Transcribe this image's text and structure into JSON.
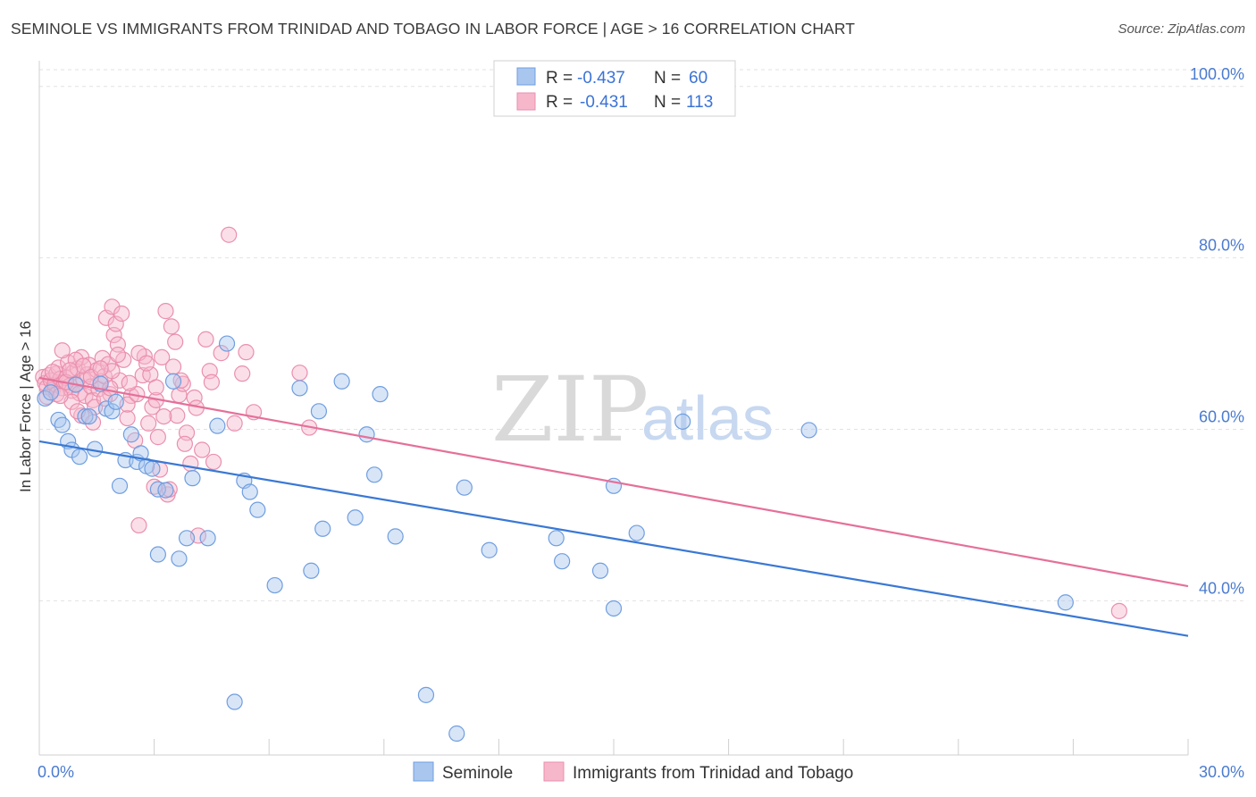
{
  "title": "SEMINOLE VS IMMIGRANTS FROM TRINIDAD AND TOBAGO IN LABOR FORCE | AGE > 16 CORRELATION CHART",
  "source": "Source: ZipAtlas.com",
  "watermark": {
    "zip": "ZIP",
    "atlas": "atlas"
  },
  "legend": {
    "r_label": "R =",
    "n_label": "N =",
    "items": [
      {
        "r": "-0.437",
        "n": "60"
      },
      {
        "r": "-0.431",
        "n": "113"
      }
    ]
  },
  "bottom_legend": [
    "Seminole",
    "Immigrants from Trinidad and Tobago"
  ],
  "colors": {
    "blue_fill": "#a9c6ee",
    "blue_stroke": "#6f9ee0",
    "blue_line": "#3a78d4",
    "pink_fill": "#f6b7cb",
    "pink_stroke": "#ea8fae",
    "pink_line": "#e5709a",
    "tick_text": "#4a7bd0"
  },
  "chart_data": {
    "type": "scatter",
    "xlabel": "",
    "ylabel": "In Labor Force | Age > 16",
    "xlim": [
      0,
      30
    ],
    "ylim": [
      22,
      103
    ],
    "x_tick_labels": [
      "0.0%",
      "30.0%"
    ],
    "y_ticks": [
      {
        "value": 100,
        "label": "100.0%"
      },
      {
        "value": 80,
        "label": "80.0%"
      },
      {
        "value": 60,
        "label": "60.0%"
      },
      {
        "value": 40,
        "label": "40.0%"
      }
    ],
    "grid": true,
    "series": [
      {
        "name": "Seminole",
        "trend": {
          "x": [
            0,
            30
          ],
          "y": [
            58.6,
            35.9
          ]
        },
        "points": [
          [
            0.15,
            63.6
          ],
          [
            0.3,
            64.3
          ],
          [
            0.5,
            61.1
          ],
          [
            0.6,
            60.5
          ],
          [
            0.75,
            58.6
          ],
          [
            0.85,
            57.6
          ],
          [
            1.05,
            56.8
          ],
          [
            1.2,
            61.5
          ],
          [
            1.45,
            57.7
          ],
          [
            1.6,
            65.3
          ],
          [
            1.75,
            62.4
          ],
          [
            1.9,
            62.1
          ],
          [
            2.0,
            63.2
          ],
          [
            2.1,
            53.4
          ],
          [
            2.25,
            56.4
          ],
          [
            2.4,
            59.4
          ],
          [
            2.55,
            56.2
          ],
          [
            2.65,
            57.2
          ],
          [
            2.8,
            55.7
          ],
          [
            2.95,
            55.4
          ],
          [
            3.1,
            53.0
          ],
          [
            3.3,
            52.9
          ],
          [
            3.5,
            65.6
          ],
          [
            3.65,
            44.9
          ],
          [
            3.85,
            47.3
          ],
          [
            4.0,
            54.3
          ],
          [
            4.4,
            47.3
          ],
          [
            4.65,
            60.4
          ],
          [
            4.9,
            70.0
          ],
          [
            5.1,
            28.2
          ],
          [
            5.35,
            54.0
          ],
          [
            5.5,
            52.7
          ],
          [
            5.7,
            50.6
          ],
          [
            6.15,
            41.8
          ],
          [
            6.8,
            64.8
          ],
          [
            7.1,
            43.5
          ],
          [
            7.3,
            62.1
          ],
          [
            7.4,
            48.4
          ],
          [
            7.9,
            65.6
          ],
          [
            8.25,
            49.7
          ],
          [
            8.55,
            59.4
          ],
          [
            8.75,
            54.7
          ],
          [
            8.9,
            64.1
          ],
          [
            9.3,
            47.5
          ],
          [
            10.1,
            29.0
          ],
          [
            10.9,
            24.5
          ],
          [
            11.1,
            53.2
          ],
          [
            11.75,
            45.9
          ],
          [
            13.5,
            47.3
          ],
          [
            13.65,
            44.6
          ],
          [
            14.65,
            43.5
          ],
          [
            15.0,
            53.4
          ],
          [
            15.0,
            39.1
          ],
          [
            15.6,
            47.9
          ],
          [
            16.8,
            60.9
          ],
          [
            20.1,
            59.9
          ],
          [
            26.8,
            39.8
          ],
          [
            3.1,
            45.4
          ],
          [
            1.3,
            61.5
          ],
          [
            0.95,
            65.2
          ]
        ]
      },
      {
        "name": "Immigrants from Trinidad and Tobago",
        "trend": {
          "x": [
            0,
            30
          ],
          "y": [
            66.0,
            41.7
          ]
        },
        "points": [
          [
            0.1,
            66.1
          ],
          [
            0.15,
            65.4
          ],
          [
            0.2,
            64.9
          ],
          [
            0.25,
            66.3
          ],
          [
            0.3,
            65.7
          ],
          [
            0.35,
            64.6
          ],
          [
            0.4,
            65.2
          ],
          [
            0.45,
            66.5
          ],
          [
            0.5,
            67.2
          ],
          [
            0.55,
            65.9
          ],
          [
            0.6,
            64.8
          ],
          [
            0.65,
            65.5
          ],
          [
            0.7,
            66.0
          ],
          [
            0.75,
            67.8
          ],
          [
            0.8,
            65.1
          ],
          [
            0.85,
            64.5
          ],
          [
            0.9,
            66.7
          ],
          [
            0.95,
            65.3
          ],
          [
            1.0,
            67.1
          ],
          [
            1.05,
            64.2
          ],
          [
            1.1,
            68.4
          ],
          [
            1.15,
            65.8
          ],
          [
            1.2,
            63.9
          ],
          [
            1.25,
            66.4
          ],
          [
            1.3,
            67.5
          ],
          [
            1.35,
            65.0
          ],
          [
            1.4,
            63.4
          ],
          [
            1.45,
            62.6
          ],
          [
            1.5,
            66.9
          ],
          [
            1.55,
            64.7
          ],
          [
            1.6,
            65.6
          ],
          [
            1.65,
            68.3
          ],
          [
            1.7,
            66.2
          ],
          [
            1.75,
            73.0
          ],
          [
            1.8,
            67.6
          ],
          [
            1.85,
            64.1
          ],
          [
            1.9,
            74.3
          ],
          [
            1.95,
            71.0
          ],
          [
            2.0,
            72.3
          ],
          [
            2.05,
            69.9
          ],
          [
            2.1,
            65.7
          ],
          [
            2.15,
            73.5
          ],
          [
            2.2,
            68.1
          ],
          [
            2.3,
            61.3
          ],
          [
            2.4,
            63.9
          ],
          [
            2.5,
            58.7
          ],
          [
            2.6,
            48.8
          ],
          [
            2.7,
            66.3
          ],
          [
            2.75,
            68.5
          ],
          [
            2.85,
            60.7
          ],
          [
            2.95,
            62.6
          ],
          [
            3.05,
            63.4
          ],
          [
            3.1,
            59.1
          ],
          [
            3.2,
            68.4
          ],
          [
            3.3,
            73.8
          ],
          [
            3.35,
            52.4
          ],
          [
            3.45,
            72.0
          ],
          [
            3.55,
            70.2
          ],
          [
            3.65,
            64.0
          ],
          [
            3.75,
            65.3
          ],
          [
            3.85,
            59.6
          ],
          [
            3.95,
            56.0
          ],
          [
            4.05,
            63.7
          ],
          [
            4.15,
            47.6
          ],
          [
            4.25,
            57.6
          ],
          [
            4.35,
            70.5
          ],
          [
            4.45,
            66.8
          ],
          [
            4.55,
            56.2
          ],
          [
            4.75,
            68.9
          ],
          [
            4.95,
            82.7
          ],
          [
            5.1,
            60.7
          ],
          [
            5.3,
            66.5
          ],
          [
            5.4,
            69.0
          ],
          [
            5.6,
            62.0
          ],
          [
            6.8,
            66.6
          ],
          [
            7.05,
            60.2
          ],
          [
            0.6,
            69.2
          ],
          [
            0.85,
            63.2
          ],
          [
            1.1,
            61.6
          ],
          [
            1.4,
            60.8
          ],
          [
            1.7,
            63.6
          ],
          [
            1.9,
            66.8
          ],
          [
            2.3,
            62.9
          ],
          [
            2.55,
            64.1
          ],
          [
            2.9,
            66.4
          ],
          [
            3.0,
            53.3
          ],
          [
            3.15,
            55.3
          ],
          [
            3.4,
            53.0
          ],
          [
            3.6,
            61.6
          ],
          [
            3.8,
            58.3
          ],
          [
            4.1,
            62.5
          ],
          [
            4.5,
            65.5
          ],
          [
            0.2,
            63.8
          ],
          [
            0.45,
            64.1
          ],
          [
            0.7,
            65.5
          ],
          [
            0.95,
            68.1
          ],
          [
            1.15,
            67.4
          ],
          [
            1.35,
            66.1
          ],
          [
            1.6,
            67.1
          ],
          [
            1.85,
            64.8
          ],
          [
            2.05,
            68.7
          ],
          [
            2.35,
            65.4
          ],
          [
            2.6,
            68.9
          ],
          [
            2.8,
            67.7
          ],
          [
            3.05,
            64.9
          ],
          [
            3.25,
            61.5
          ],
          [
            3.5,
            67.3
          ],
          [
            3.7,
            65.7
          ],
          [
            28.2,
            38.8
          ],
          [
            0.35,
            66.7
          ],
          [
            0.55,
            63.9
          ],
          [
            0.8,
            66.9
          ],
          [
            1.0,
            62.1
          ]
        ]
      }
    ]
  }
}
